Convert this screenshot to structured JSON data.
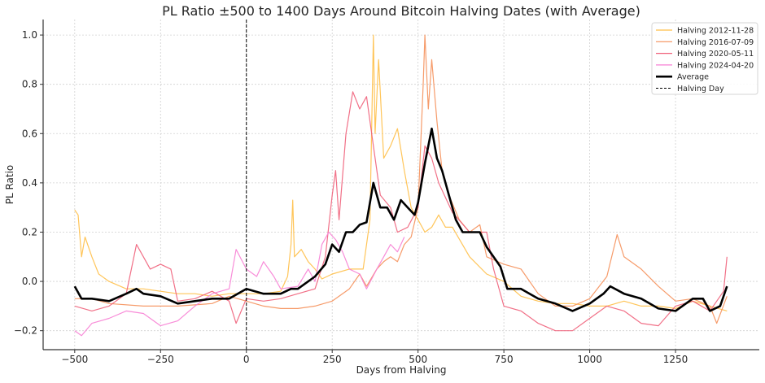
{
  "chart_data": {
    "type": "line",
    "title": "PL Ratio ±500 to 1400 Days Around Bitcoin Halving Dates (with Average)",
    "xlabel": "Days from Halving",
    "ylabel": "PL Ratio",
    "xlim": [
      -592,
      1494
    ],
    "ylim": [
      -0.277,
      1.063
    ],
    "xticks": [
      -500,
      -250,
      0,
      250,
      500,
      750,
      1000,
      1250
    ],
    "xtick_labels": [
      "−500",
      "−250",
      "0",
      "250",
      "500",
      "750",
      "1000",
      "1250"
    ],
    "yticks": [
      -0.2,
      0.0,
      0.2,
      0.4,
      0.6,
      0.8,
      1.0
    ],
    "ytick_labels": [
      "−0.2",
      "0.0",
      "0.2",
      "0.4",
      "0.6",
      "0.8",
      "1.0"
    ],
    "grid": true,
    "legend_position": "top-right",
    "vline": {
      "x": 0,
      "name": "Halving Day",
      "color": "#000000",
      "style": "dashed"
    },
    "series": [
      {
        "name": "Halving 2012-11-28",
        "color": "#FFBF47",
        "width": 1.2,
        "x": [
          -500,
          -490,
          -480,
          -470,
          -450,
          -430,
          -400,
          -350,
          -300,
          -250,
          -200,
          -150,
          -100,
          -50,
          0,
          50,
          100,
          120,
          130,
          135,
          140,
          160,
          180,
          200,
          220,
          250,
          300,
          340,
          360,
          370,
          375,
          385,
          400,
          420,
          440,
          460,
          480,
          500,
          520,
          540,
          560,
          580,
          600,
          650,
          700,
          750,
          800,
          850,
          900,
          950,
          1000,
          1050,
          1100,
          1150,
          1200,
          1250,
          1300,
          1350,
          1400
        ],
        "y": [
          0.29,
          0.27,
          0.1,
          0.18,
          0.1,
          0.03,
          0.0,
          -0.03,
          -0.03,
          -0.04,
          -0.05,
          -0.05,
          -0.06,
          -0.05,
          -0.05,
          -0.05,
          -0.04,
          0.02,
          0.15,
          0.33,
          0.1,
          0.13,
          0.08,
          0.05,
          0.01,
          0.03,
          0.05,
          0.05,
          0.25,
          1.0,
          0.6,
          0.9,
          0.5,
          0.55,
          0.62,
          0.45,
          0.3,
          0.25,
          0.2,
          0.22,
          0.27,
          0.22,
          0.22,
          0.1,
          0.03,
          0.0,
          -0.06,
          -0.08,
          -0.09,
          -0.09,
          -0.1,
          -0.1,
          -0.08,
          -0.1,
          -0.1,
          -0.11,
          -0.08,
          -0.1,
          -0.12
        ]
      },
      {
        "name": "Halving 2016-07-09",
        "color": "#F5905A",
        "width": 1.2,
        "x": [
          -500,
          -450,
          -400,
          -300,
          -200,
          -100,
          -50,
          0,
          50,
          100,
          150,
          200,
          250,
          300,
          330,
          350,
          380,
          400,
          420,
          440,
          460,
          480,
          500,
          515,
          520,
          530,
          540,
          555,
          570,
          590,
          620,
          650,
          680,
          700,
          750,
          800,
          850,
          900,
          950,
          1000,
          1050,
          1080,
          1100,
          1150,
          1200,
          1250,
          1300,
          1350,
          1370,
          1400
        ],
        "y": [
          -0.07,
          -0.07,
          -0.09,
          -0.1,
          -0.1,
          -0.09,
          -0.06,
          -0.08,
          -0.1,
          -0.11,
          -0.11,
          -0.1,
          -0.08,
          -0.03,
          0.03,
          -0.02,
          0.05,
          0.08,
          0.1,
          0.08,
          0.15,
          0.18,
          0.3,
          0.8,
          1.0,
          0.7,
          0.9,
          0.65,
          0.45,
          0.35,
          0.25,
          0.2,
          0.23,
          0.1,
          0.07,
          0.05,
          -0.05,
          -0.1,
          -0.1,
          -0.07,
          0.02,
          0.19,
          0.1,
          0.05,
          -0.02,
          -0.08,
          -0.07,
          -0.1,
          -0.17,
          -0.06
        ]
      },
      {
        "name": "Halving 2020-05-11",
        "color": "#F0607A",
        "width": 1.2,
        "x": [
          -500,
          -450,
          -400,
          -350,
          -320,
          -300,
          -280,
          -250,
          -220,
          -200,
          -150,
          -100,
          -50,
          -30,
          0,
          50,
          100,
          150,
          200,
          230,
          250,
          260,
          270,
          290,
          310,
          330,
          350,
          370,
          390,
          420,
          440,
          470,
          500,
          520,
          540,
          560,
          600,
          650,
          700,
          720,
          750,
          800,
          850,
          900,
          950,
          1000,
          1050,
          1100,
          1150,
          1200,
          1250,
          1300,
          1350,
          1390,
          1400
        ],
        "y": [
          -0.1,
          -0.12,
          -0.1,
          -0.05,
          0.15,
          0.1,
          0.05,
          0.07,
          0.05,
          -0.08,
          -0.07,
          -0.04,
          -0.08,
          -0.17,
          -0.07,
          -0.08,
          -0.07,
          -0.05,
          -0.03,
          0.1,
          0.35,
          0.45,
          0.25,
          0.6,
          0.77,
          0.7,
          0.75,
          0.55,
          0.35,
          0.3,
          0.2,
          0.22,
          0.3,
          0.55,
          0.5,
          0.4,
          0.28,
          0.2,
          0.2,
          0.05,
          -0.1,
          -0.12,
          -0.17,
          -0.2,
          -0.2,
          -0.15,
          -0.1,
          -0.12,
          -0.17,
          -0.18,
          -0.1,
          -0.08,
          -0.12,
          -0.04,
          0.1
        ]
      },
      {
        "name": "Halving 2024-04-20",
        "color": "#F77FD4",
        "width": 1.2,
        "x": [
          -500,
          -480,
          -450,
          -400,
          -350,
          -300,
          -250,
          -200,
          -150,
          -100,
          -50,
          -30,
          0,
          30,
          50,
          80,
          100,
          150,
          180,
          200,
          220,
          240,
          260,
          280,
          300,
          330,
          350,
          380,
          400,
          420,
          440,
          460
        ],
        "y": [
          -0.2,
          -0.22,
          -0.17,
          -0.15,
          -0.12,
          -0.13,
          -0.18,
          -0.16,
          -0.1,
          -0.05,
          -0.03,
          0.13,
          0.05,
          0.02,
          0.08,
          0.02,
          -0.03,
          -0.02,
          0.05,
          0.0,
          0.15,
          0.2,
          0.17,
          0.12,
          0.05,
          0.03,
          -0.03,
          0.05,
          0.1,
          0.15,
          0.12,
          0.18
        ]
      },
      {
        "name": "Average",
        "color": "#000000",
        "width": 2.6,
        "x": [
          -500,
          -480,
          -450,
          -400,
          -350,
          -320,
          -300,
          -250,
          -200,
          -150,
          -100,
          -50,
          0,
          50,
          100,
          130,
          150,
          180,
          200,
          230,
          250,
          270,
          290,
          310,
          330,
          350,
          370,
          390,
          410,
          430,
          450,
          470,
          490,
          500,
          520,
          540,
          555,
          570,
          590,
          610,
          630,
          650,
          680,
          700,
          740,
          760,
          800,
          850,
          900,
          950,
          1000,
          1040,
          1060,
          1100,
          1150,
          1200,
          1250,
          1300,
          1330,
          1350,
          1380,
          1400
        ],
        "y": [
          -0.02,
          -0.07,
          -0.07,
          -0.08,
          -0.05,
          -0.03,
          -0.05,
          -0.06,
          -0.09,
          -0.08,
          -0.07,
          -0.07,
          -0.03,
          -0.05,
          -0.05,
          -0.03,
          -0.03,
          0.0,
          0.02,
          0.07,
          0.15,
          0.12,
          0.2,
          0.2,
          0.23,
          0.24,
          0.4,
          0.3,
          0.3,
          0.25,
          0.33,
          0.3,
          0.27,
          0.32,
          0.48,
          0.62,
          0.5,
          0.45,
          0.35,
          0.25,
          0.2,
          0.2,
          0.2,
          0.14,
          0.06,
          -0.03,
          -0.03,
          -0.07,
          -0.09,
          -0.12,
          -0.09,
          -0.05,
          -0.02,
          -0.05,
          -0.07,
          -0.11,
          -0.12,
          -0.07,
          -0.07,
          -0.12,
          -0.1,
          -0.02
        ]
      }
    ]
  }
}
